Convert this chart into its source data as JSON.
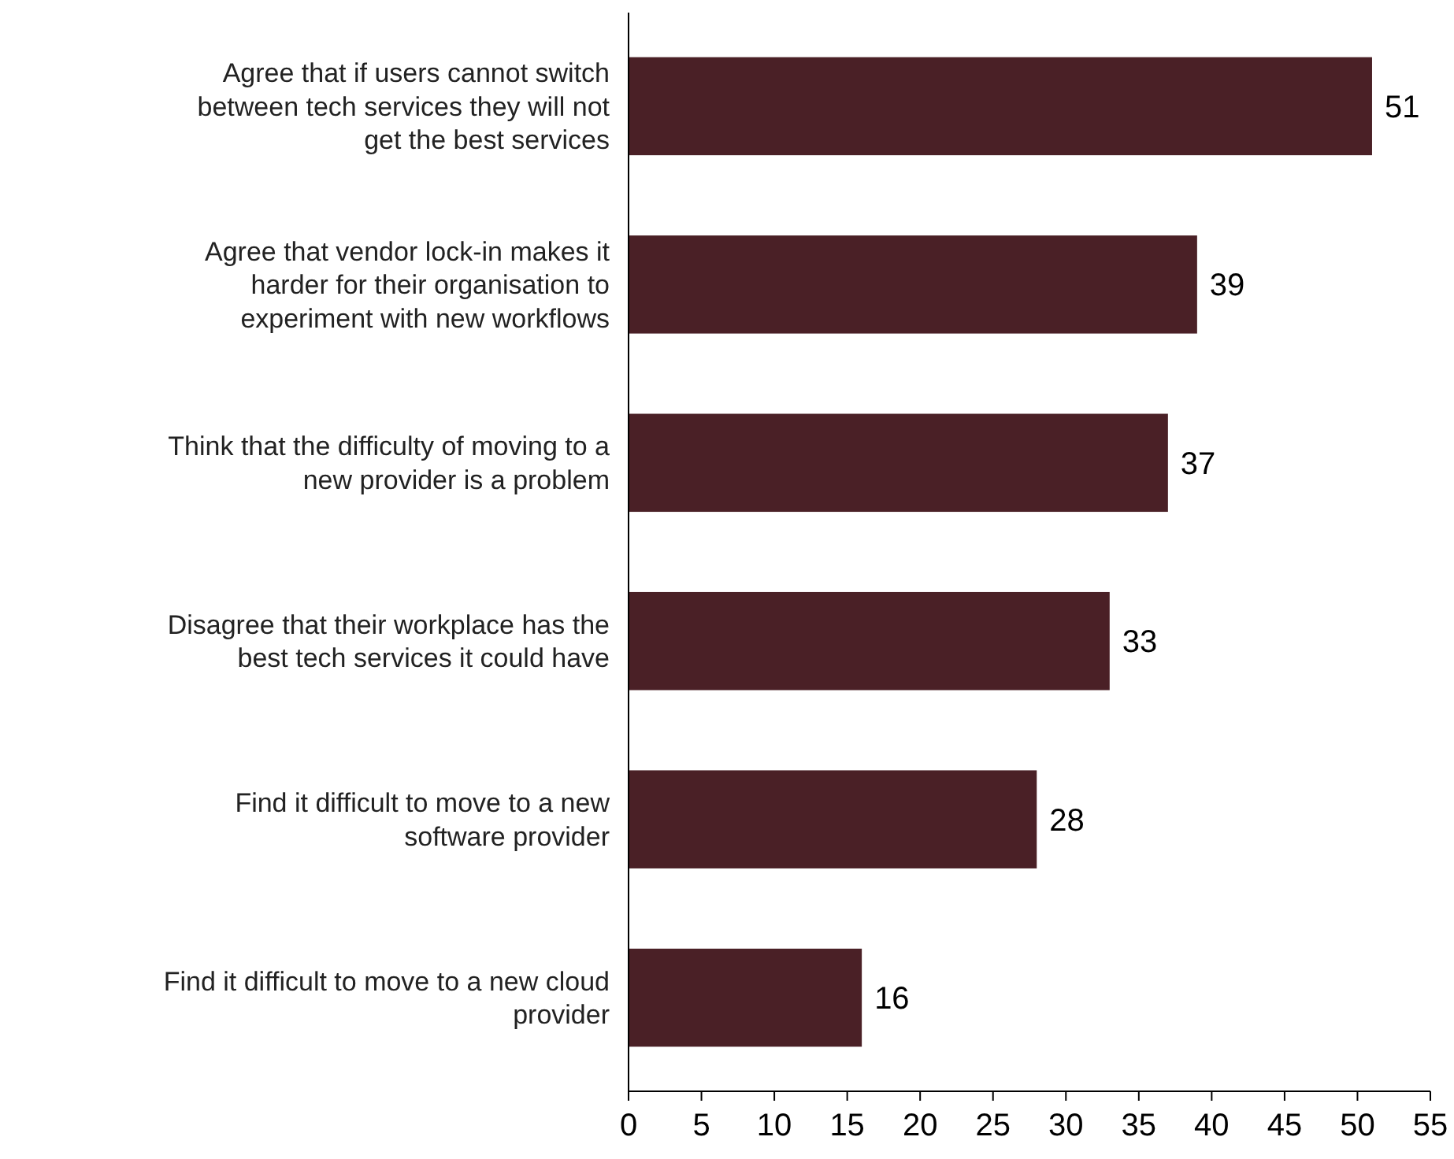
{
  "chart_data": {
    "type": "bar",
    "orientation": "horizontal",
    "categories": [
      "Agree that if users cannot switch between tech services they will not get the best services",
      "Agree that vendor lock-in makes it harder for their organisation to experiment with new workflows",
      "Think that the difficulty of moving to a new provider is a problem",
      "Disagree that their workplace has the best tech services it could have",
      "Find it difficult to move to a new software provider",
      "Find it difficult to move to a new cloud provider"
    ],
    "values": [
      51,
      39,
      37,
      33,
      28,
      16
    ],
    "color": "#4a2026",
    "xlim": [
      0,
      55
    ],
    "xticks": [
      0,
      5,
      10,
      15,
      20,
      25,
      30,
      35,
      40,
      45,
      50,
      55
    ],
    "data_labels": true
  }
}
